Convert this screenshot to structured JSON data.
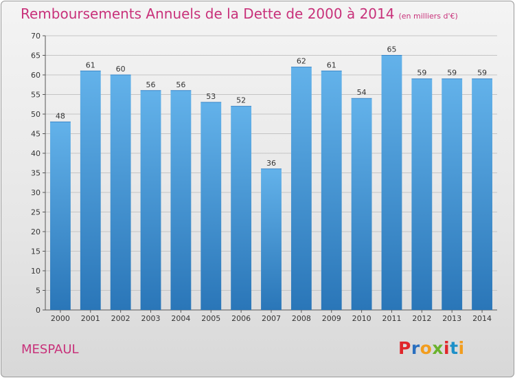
{
  "chart_title": {
    "main": "Remboursements Annuels de la Dette de 2000 à 2014",
    "unit": "(en milliers d'€)"
  },
  "footer": {
    "place": "MESPAUL",
    "logo_text": "Proxiti",
    "logo_colors": [
      "#e0262b",
      "#2a6fbf",
      "#f29d1e",
      "#6ab22d",
      "#e0262b",
      "#1e90c8",
      "#f29d1e"
    ]
  },
  "chart_data": {
    "type": "bar",
    "title": "Remboursements Annuels de la Dette de 2000 à 2014",
    "subtitle": "(en milliers d'€)",
    "categories": [
      "2000",
      "2001",
      "2002",
      "2003",
      "2004",
      "2005",
      "2006",
      "2007",
      "2008",
      "2009",
      "2010",
      "2011",
      "2012",
      "2013",
      "2014"
    ],
    "values": [
      48,
      61,
      60,
      56,
      56,
      53,
      52,
      36,
      62,
      61,
      54,
      65,
      59,
      59,
      59
    ],
    "ylim": [
      0,
      70
    ],
    "yticks": [
      0,
      5,
      10,
      15,
      20,
      25,
      30,
      35,
      40,
      45,
      50,
      55,
      60,
      65,
      70
    ],
    "grid": true,
    "bar_color_top": "#63b2ea",
    "bar_color_bottom": "#2a76b8",
    "data_labels": true
  }
}
